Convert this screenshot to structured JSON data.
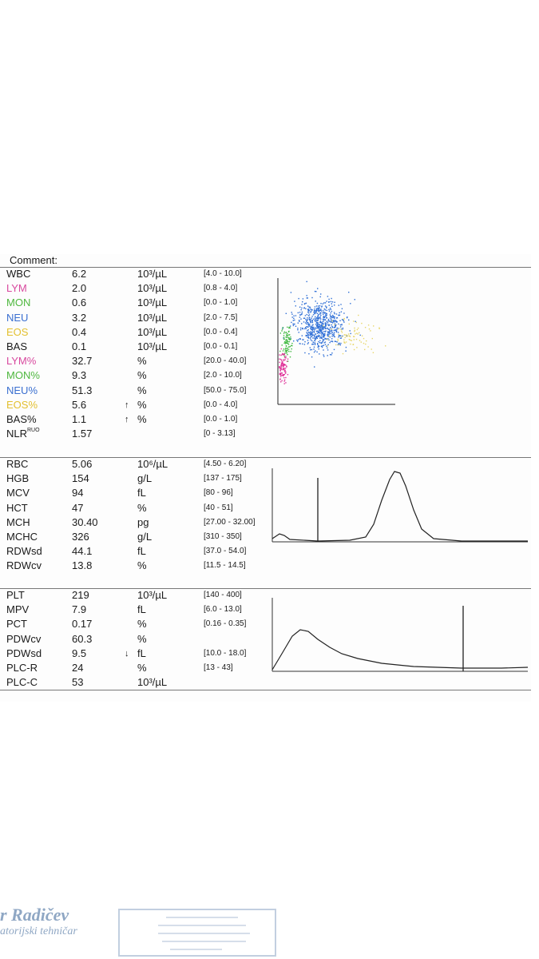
{
  "comment_label": "Comment:",
  "colors": {
    "LYM": "#d8489e",
    "MON": "#4fb83f",
    "NEU": "#3a6fd0",
    "EOS": "#e3c030",
    "default": "#1a1a1a",
    "scatter_neu": "#2f6fd6",
    "scatter_mon": "#3fb83f",
    "scatter_lym": "#e0359a",
    "scatter_eos": "#e8d66a"
  },
  "wbc_rows": [
    {
      "name": "WBC",
      "value": "6.2",
      "flag": "",
      "unit": "10³/µL",
      "range": "[4.0 - 10.0]",
      "color": "default"
    },
    {
      "name": "LYM",
      "value": "2.0",
      "flag": "",
      "unit": "10³/µL",
      "range": "[0.8 - 4.0]",
      "color": "LYM"
    },
    {
      "name": "MON",
      "value": "0.6",
      "flag": "",
      "unit": "10³/µL",
      "range": "[0.0 - 1.0]",
      "color": "MON"
    },
    {
      "name": "NEU",
      "value": "3.2",
      "flag": "",
      "unit": "10³/µL",
      "range": "[2.0 - 7.5]",
      "color": "NEU"
    },
    {
      "name": "EOS",
      "value": "0.4",
      "flag": "",
      "unit": "10³/µL",
      "range": "[0.0 - 0.4]",
      "color": "EOS"
    },
    {
      "name": "BAS",
      "value": "0.1",
      "flag": "",
      "unit": "10³/µL",
      "range": "[0.0 - 0.1]",
      "color": "default"
    },
    {
      "name": "LYM%",
      "value": "32.7",
      "flag": "",
      "unit": "%",
      "range": "[20.0 - 40.0]",
      "color": "LYM"
    },
    {
      "name": "MON%",
      "value": "9.3",
      "flag": "",
      "unit": "%",
      "range": "[2.0 - 10.0]",
      "color": "MON"
    },
    {
      "name": "NEU%",
      "value": "51.3",
      "flag": "",
      "unit": "%",
      "range": "[50.0 - 75.0]",
      "color": "NEU"
    },
    {
      "name": "EOS%",
      "value": "5.6",
      "flag": "↑",
      "unit": "%",
      "range": "[0.0 - 4.0]",
      "color": "EOS"
    },
    {
      "name": "BAS%",
      "value": "1.1",
      "flag": "↑",
      "unit": "%",
      "range": "[0.0 - 1.0]",
      "color": "default"
    },
    {
      "name": "NLR",
      "name_sup": "RUO",
      "value": "1.57",
      "flag": "",
      "unit": "",
      "range": "[0 - 3.13]",
      "color": "default"
    }
  ],
  "rbc_rows": [
    {
      "name": "RBC",
      "value": "5.06",
      "flag": "",
      "unit": "10⁶/µL",
      "range": "[4.50 - 6.20]"
    },
    {
      "name": "HGB",
      "value": "154",
      "flag": "",
      "unit": "g/L",
      "range": "[137 - 175]"
    },
    {
      "name": "MCV",
      "value": "94",
      "flag": "",
      "unit": "fL",
      "range": "[80 - 96]"
    },
    {
      "name": "HCT",
      "value": "47",
      "flag": "",
      "unit": "%",
      "range": "[40 - 51]"
    },
    {
      "name": "MCH",
      "value": "30.40",
      "flag": "",
      "unit": "pg",
      "range": "[27.00 - 32.00]"
    },
    {
      "name": "MCHC",
      "value": "326",
      "flag": "",
      "unit": "g/L",
      "range": "[310 - 350]"
    },
    {
      "name": "RDWsd",
      "value": "44.1",
      "flag": "",
      "unit": "fL",
      "range": "[37.0 - 54.0]"
    },
    {
      "name": "RDWcv",
      "value": "13.8",
      "flag": "",
      "unit": "%",
      "range": "[11.5 - 14.5]"
    }
  ],
  "plt_rows": [
    {
      "name": "PLT",
      "value": "219",
      "flag": "",
      "unit": "10³/µL",
      "range": "[140 - 400]"
    },
    {
      "name": "MPV",
      "value": "7.9",
      "flag": "",
      "unit": "fL",
      "range": "[6.0 - 13.0]"
    },
    {
      "name": "PCT",
      "value": "0.17",
      "flag": "",
      "unit": "%",
      "range": "[0.16 - 0.35]"
    },
    {
      "name": "PDWcv",
      "value": "60.3",
      "flag": "",
      "unit": "%",
      "range": ""
    },
    {
      "name": "PDWsd",
      "value": "9.5",
      "flag": "↓",
      "unit": "fL",
      "range": "[10.0 - 18.0]"
    },
    {
      "name": "PLC-R",
      "value": "24",
      "flag": "",
      "unit": "%",
      "range": "[13 - 43]"
    },
    {
      "name": "PLC-C",
      "value": "53",
      "flag": "",
      "unit": "10³/µL",
      "range": ""
    }
  ],
  "stamp": {
    "signature_line1": "r Radičev",
    "signature_line2": "atorijski tehničar"
  }
}
